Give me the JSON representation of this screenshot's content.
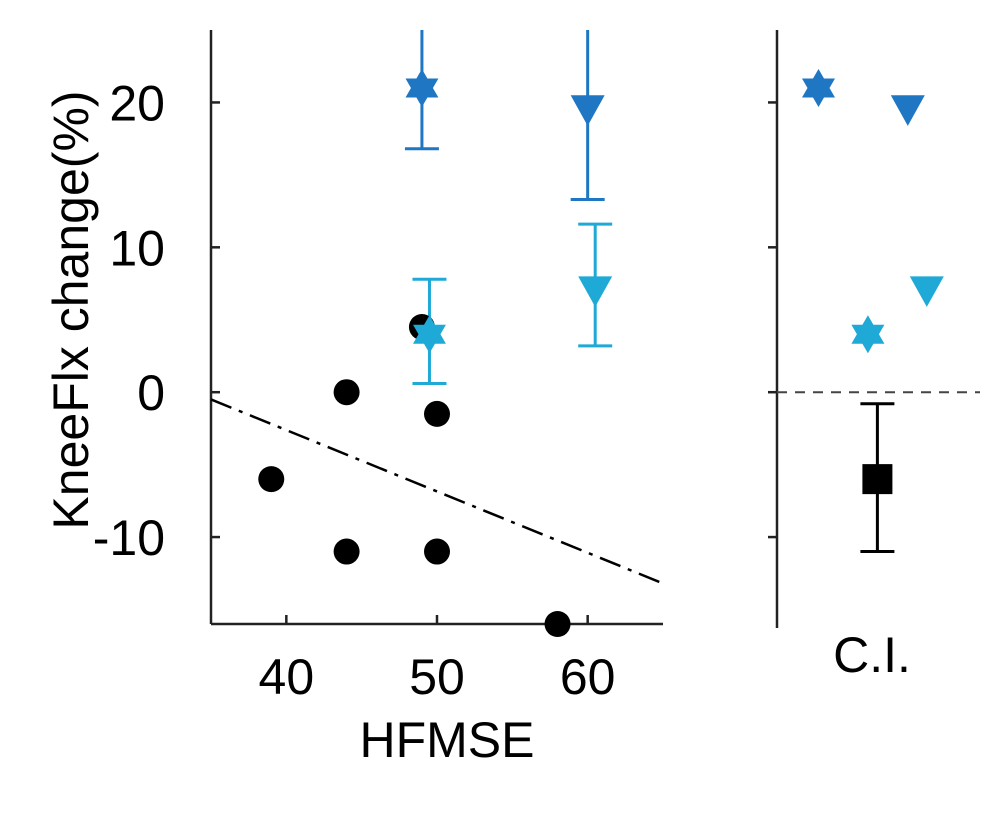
{
  "chart_data": [
    {
      "type": "scatter",
      "xlabel": "HFMSE",
      "ylabel": "KneeFlx change(%)",
      "xlim": [
        35,
        65
      ],
      "ylim": [
        -16,
        25
      ],
      "xticks": [
        40,
        50,
        60
      ],
      "yticks": [
        -10,
        0,
        10,
        20
      ],
      "grid": false,
      "legend": "none",
      "series": [
        {
          "marker": "circle",
          "color": "#000000",
          "points": [
            {
              "x": 39,
              "y": -6
            },
            {
              "x": 44,
              "y": 0
            },
            {
              "x": 44,
              "y": -11
            },
            {
              "x": 49,
              "y": 4.5
            },
            {
              "x": 50,
              "y": -1.5
            },
            {
              "x": 50,
              "y": -11
            },
            {
              "x": 58,
              "y": -16
            }
          ]
        },
        {
          "marker": "star",
          "color": "#1f77c4",
          "points": [
            {
              "x": 49,
              "y": 21,
              "ylow": 16.8,
              "yhigh": 25
            }
          ]
        },
        {
          "marker": "triangle-down",
          "color": "#1f77c4",
          "points": [
            {
              "x": 60,
              "y": 19.5,
              "ylow": 13.3,
              "yhigh": 25
            }
          ]
        },
        {
          "marker": "star",
          "color": "#1fa9d6",
          "points": [
            {
              "x": 49.5,
              "y": 4,
              "ylow": 0.6,
              "yhigh": 7.8
            }
          ]
        },
        {
          "marker": "triangle-down",
          "color": "#1fa9d6",
          "points": [
            {
              "x": 60.5,
              "y": 7,
              "ylow": 3.2,
              "yhigh": 11.6
            }
          ]
        }
      ],
      "trendline": {
        "style": "dash-dot",
        "color": "#000000",
        "x": [
          35,
          65
        ],
        "y": [
          -0.5,
          -13.2
        ]
      }
    },
    {
      "type": "scatter",
      "xlabel": "C.I.",
      "ylim": [
        -16,
        25
      ],
      "grid": false,
      "legend": "none",
      "reference_line": {
        "y": 0,
        "style": "dashed"
      },
      "series": [
        {
          "marker": "star",
          "color": "#1f77c4",
          "points": [
            {
              "pos": 0.15,
              "y": 21
            }
          ]
        },
        {
          "marker": "triangle-down",
          "color": "#1f77c4",
          "points": [
            {
              "pos": 0.62,
              "y": 19.5
            }
          ]
        },
        {
          "marker": "star",
          "color": "#1fa9d6",
          "points": [
            {
              "pos": 0.41,
              "y": 4
            }
          ]
        },
        {
          "marker": "triangle-down",
          "color": "#1fa9d6",
          "points": [
            {
              "pos": 0.72,
              "y": 7
            }
          ]
        },
        {
          "marker": "square",
          "color": "#000000",
          "points": [
            {
              "pos": 0.46,
              "y": -6,
              "ylow": -11,
              "yhigh": -0.8
            }
          ]
        }
      ]
    }
  ]
}
